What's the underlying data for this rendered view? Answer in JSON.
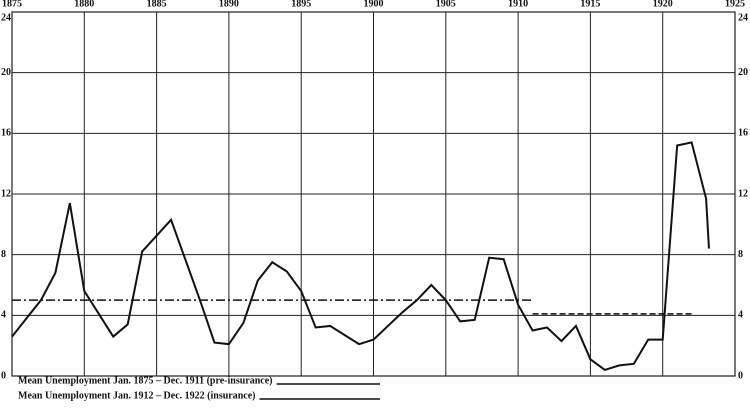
{
  "chart_data": {
    "type": "line",
    "xlim": [
      1875,
      1925
    ],
    "xticks": [
      1875,
      1880,
      1885,
      1890,
      1895,
      1900,
      1905,
      1910,
      1915,
      1920,
      1925
    ],
    "ylim": [
      0,
      24
    ],
    "yticks": [
      0,
      4,
      8,
      12,
      16,
      20,
      24
    ],
    "grid": true,
    "series": [
      {
        "color": "#111111",
        "line_style": "solid",
        "x": [
          1875,
          1877,
          1878,
          1879,
          1880,
          1882,
          1883,
          1884,
          1886,
          1888,
          1889,
          1890,
          1891,
          1892,
          1893,
          1894,
          1895,
          1896,
          1897,
          1899,
          1900,
          1902,
          1903,
          1904,
          1905,
          1906,
          1907,
          1908,
          1909,
          1910,
          1911,
          1912,
          1913,
          1914,
          1915,
          1916,
          1917,
          1918,
          1919,
          1920,
          1921,
          1922,
          1923,
          1923.2
        ],
        "values": [
          2.6,
          5.0,
          6.8,
          11.4,
          5.6,
          2.6,
          3.4,
          8.2,
          10.3,
          5.0,
          2.2,
          2.1,
          3.5,
          6.3,
          7.5,
          6.9,
          5.6,
          3.2,
          3.3,
          2.1,
          2.4,
          4.2,
          5.0,
          6.0,
          5.0,
          3.6,
          3.7,
          7.8,
          7.7,
          4.7,
          3.0,
          3.2,
          2.3,
          3.3,
          1.1,
          0.4,
          0.7,
          0.8,
          2.4,
          2.4,
          15.2,
          15.4,
          11.7,
          8.4
        ]
      },
      {
        "name": "Mean Unemployment Jan. 1875 – Dec. 1911 (pre-insurance)",
        "color": "#111111",
        "line_style": "dash-dot",
        "x": [
          1875,
          1911
        ],
        "values": [
          5.0,
          5.0
        ]
      },
      {
        "name": "Mean Unemployment Jan. 1912 – Dec. 1922 (insurance)",
        "color": "#111111",
        "line_style": "dashed",
        "x": [
          1911,
          1922
        ],
        "values": [
          4.1,
          4.1
        ]
      }
    ]
  }
}
